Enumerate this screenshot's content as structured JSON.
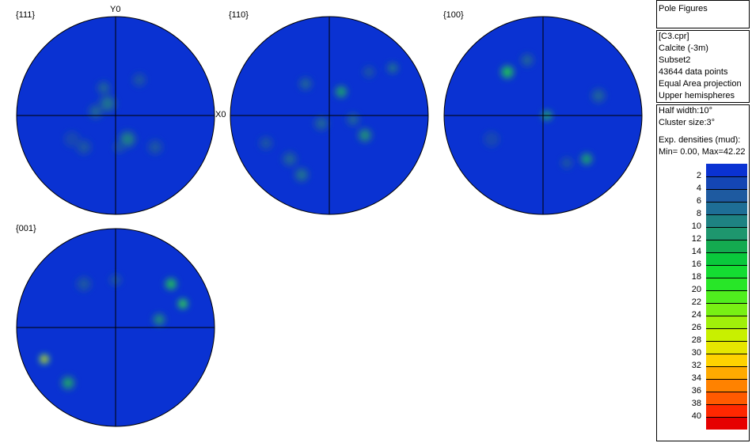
{
  "chart_data": {
    "type": "heatmap",
    "panel_title": "Pole Figures",
    "file": "[C3.cpr]",
    "phase": "Calcite (-3m)",
    "subset": "Subset2",
    "points": "43644 data points",
    "projection": "Equal Area projection",
    "hemisphere": "Upper hemispheres",
    "half_width": "Half width:10°",
    "cluster_size": "Cluster size:3°",
    "density_label": "Exp. densities (mud):",
    "range_text": "Min= 0.00, Max=42.22",
    "min": 0.0,
    "max": 42.22,
    "axis_y": "Y0",
    "axis_x": "X0",
    "scale_ticks": [
      2,
      4,
      6,
      8,
      10,
      12,
      14,
      16,
      18,
      20,
      22,
      24,
      26,
      28,
      30,
      32,
      34,
      36,
      38,
      40
    ],
    "scale_colors": [
      "#0a32d2",
      "#1446b4",
      "#1e5aa0",
      "#1e6e96",
      "#1e8282",
      "#1e966e",
      "#14aa50",
      "#0ac83c",
      "#14dc32",
      "#28e628",
      "#50ee1e",
      "#78f014",
      "#a0f00a",
      "#c8f000",
      "#e6e600",
      "#ffd200",
      "#ffaa00",
      "#ff8200",
      "#ff5a00",
      "#ff2800",
      "#e60000"
    ],
    "figures": [
      {
        "label": "{111}",
        "clusters": [
          [
            -10,
            -15,
            8,
            12
          ],
          [
            15,
            30,
            10,
            12
          ],
          [
            -25,
            -5,
            7,
            10
          ],
          [
            30,
            -45,
            5,
            9
          ],
          [
            -40,
            40,
            4,
            10
          ],
          [
            50,
            40,
            4,
            10
          ],
          [
            -15,
            -35,
            6,
            9
          ],
          [
            5,
            40,
            5,
            8
          ],
          [
            -55,
            30,
            3,
            10
          ]
        ]
      },
      {
        "label": "{110}",
        "clusters": [
          [
            -35,
            75,
            8,
            10
          ],
          [
            15,
            -30,
            14,
            9
          ],
          [
            45,
            25,
            12,
            10
          ],
          [
            30,
            5,
            7,
            9
          ],
          [
            -50,
            55,
            7,
            10
          ],
          [
            -80,
            35,
            5,
            9
          ],
          [
            80,
            -60,
            9,
            8
          ],
          [
            -10,
            10,
            6,
            10
          ],
          [
            -30,
            -40,
            6,
            9
          ],
          [
            50,
            -55,
            5,
            8
          ]
        ]
      },
      {
        "label": "{100}",
        "clusters": [
          [
            -45,
            -55,
            18,
            10
          ],
          [
            5,
            0,
            15,
            8
          ],
          [
            55,
            55,
            14,
            9
          ],
          [
            70,
            -25,
            6,
            10
          ],
          [
            -20,
            -70,
            7,
            9
          ],
          [
            30,
            60,
            5,
            8
          ],
          [
            -65,
            30,
            3,
            10
          ]
        ]
      },
      {
        "label": "{001}",
        "clusters": [
          [
            -90,
            40,
            40,
            7
          ],
          [
            -60,
            70,
            15,
            10
          ],
          [
            70,
            -55,
            18,
            9
          ],
          [
            85,
            -30,
            20,
            8
          ],
          [
            55,
            -10,
            12,
            9
          ],
          [
            -40,
            -55,
            5,
            10
          ],
          [
            0,
            -60,
            4,
            8
          ]
        ]
      }
    ]
  }
}
